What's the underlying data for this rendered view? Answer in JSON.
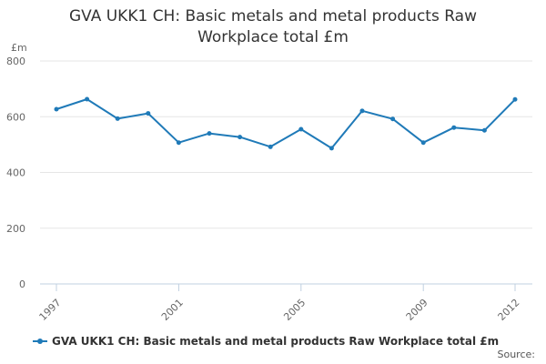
{
  "chart_data": {
    "type": "line",
    "title": "GVA UKK1 CH: Basic metals and metal products Raw Workplace total £m",
    "title_lines": [
      "GVA UKK1 CH: Basic metals and metal products Raw",
      "Workplace total £m"
    ],
    "ylabel": "£m",
    "xlabel": "",
    "ylim": [
      0,
      800
    ],
    "y_ticks": [
      0,
      200,
      400,
      600,
      800
    ],
    "x_tick_labels": [
      "1997",
      "2001",
      "2005",
      "2009",
      "2012"
    ],
    "grid": "horizontal",
    "legend_position": "bottom-left",
    "series": [
      {
        "name": "GVA UKK1 CH: Basic metals and metal products Raw Workplace total £m",
        "color": "#1f7ab8",
        "x": [
          1997,
          1998,
          1999,
          2000,
          2001,
          2002,
          2003,
          2004,
          2005,
          2006,
          2007,
          2008,
          2009,
          2010,
          2011,
          2012
        ],
        "values": [
          627,
          663,
          593,
          612,
          507,
          540,
          527,
          492,
          555,
          487,
          621,
          592,
          507,
          561,
          551,
          662
        ]
      }
    ]
  },
  "footer": {
    "source_label": "Source:"
  }
}
